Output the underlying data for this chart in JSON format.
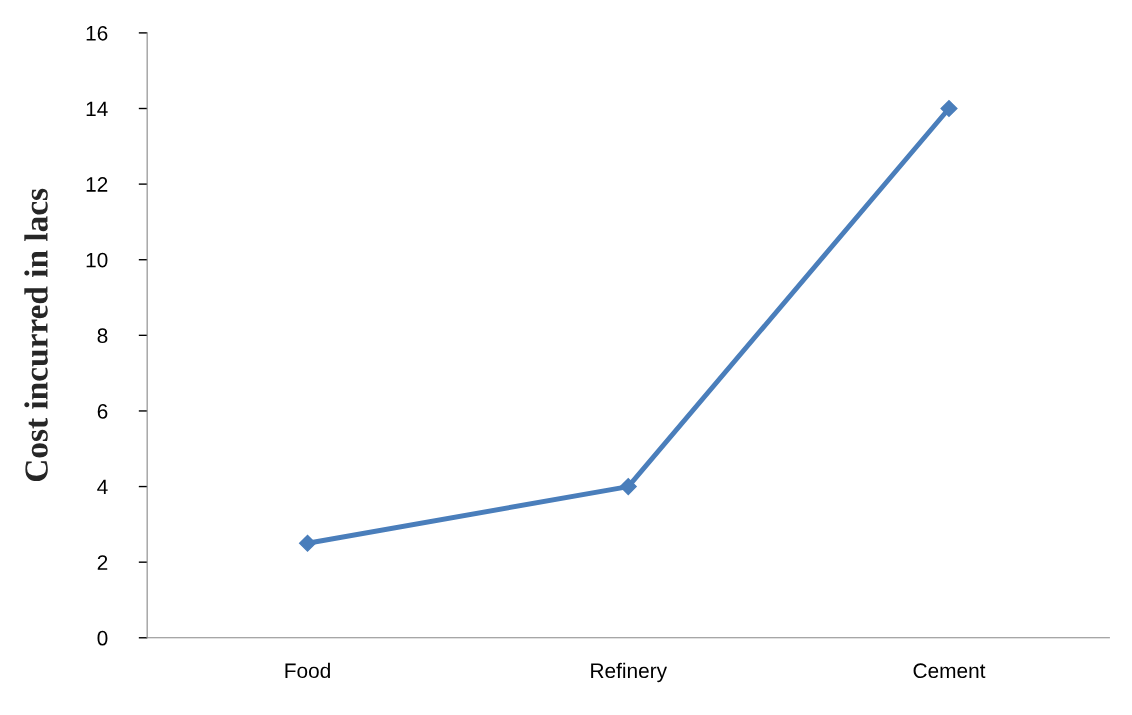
{
  "chart_data": {
    "type": "line",
    "ylabel": "Cost incurred in lacs",
    "categories": [
      "Food",
      "Refinery",
      "Cement"
    ],
    "series": [
      {
        "color": "#4a7ebb",
        "values": [
          2.5,
          4,
          14
        ]
      }
    ],
    "ylim": [
      0,
      16
    ],
    "yticks": [
      0,
      2,
      4,
      6,
      8,
      10,
      12,
      14,
      16
    ],
    "grid": false,
    "legend": false,
    "marker": "diamond",
    "line_style": "solid"
  }
}
